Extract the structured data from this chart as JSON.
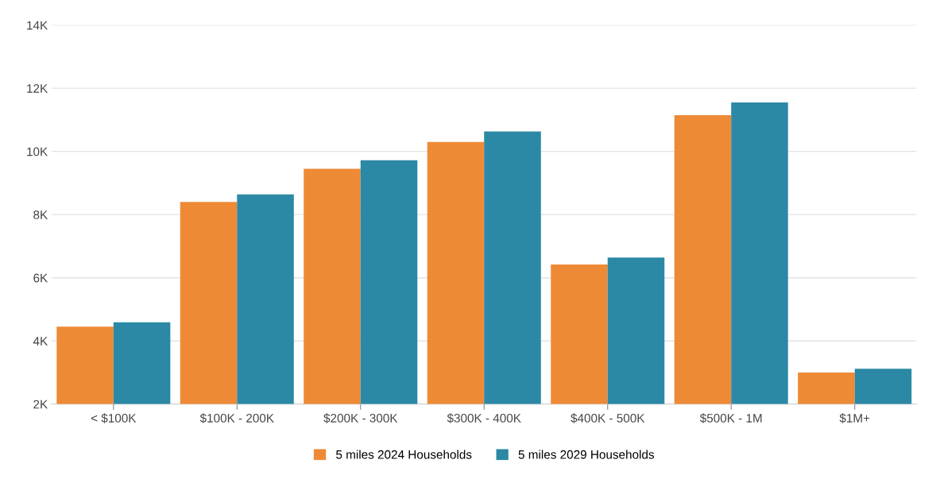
{
  "chart_data": {
    "type": "bar",
    "categories": [
      "< $100K",
      "$100K - 200K",
      "$200K - 300K",
      "$300K - 400K",
      "$400K - 500K",
      "$500K - 1M",
      "$1M+"
    ],
    "series": [
      {
        "name": "5 miles 2024 Households",
        "color": "#ee8a36",
        "values": [
          4450,
          8400,
          9450,
          10300,
          6420,
          11150,
          3000
        ]
      },
      {
        "name": "5 miles 2029 Households",
        "color": "#2b89a5",
        "values": [
          4590,
          8640,
          9720,
          10630,
          6640,
          11550,
          3120
        ]
      }
    ],
    "ylim": [
      2000,
      14000
    ],
    "yticks": [
      {
        "value": 2000,
        "label": "2K"
      },
      {
        "value": 4000,
        "label": "4K"
      },
      {
        "value": 6000,
        "label": "6K"
      },
      {
        "value": 8000,
        "label": "8K"
      },
      {
        "value": 10000,
        "label": "10K"
      },
      {
        "value": 12000,
        "label": "12K"
      },
      {
        "value": 14000,
        "label": "14K"
      }
    ],
    "grid": "y",
    "legend": "bottom"
  }
}
